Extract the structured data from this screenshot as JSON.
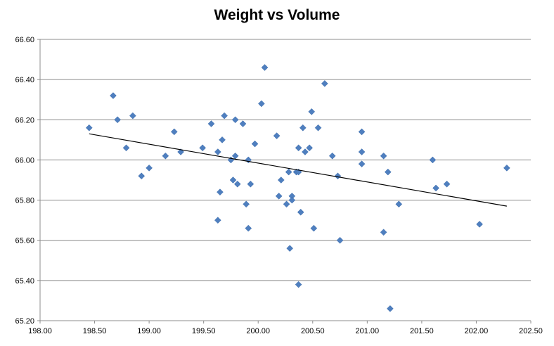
{
  "chart_data": {
    "type": "scatter",
    "title": "Weight vs Volume",
    "xlabel": "",
    "ylabel": "",
    "xlim": [
      198.0,
      202.5
    ],
    "ylim": [
      65.2,
      66.6
    ],
    "x_ticks": [
      "198.00",
      "198.50",
      "199.00",
      "199.50",
      "200.00",
      "200.50",
      "201.00",
      "201.50",
      "202.00",
      "202.50"
    ],
    "y_ticks": [
      "66.60",
      "66.40",
      "66.20",
      "66.00",
      "65.80",
      "65.60",
      "65.40",
      "65.20"
    ],
    "grid": "horizontal",
    "legend": "none",
    "marker_color": "#4f7fbf",
    "trendline_color": "#000000",
    "trendline": {
      "x": [
        198.45,
        202.28
      ],
      "y": [
        66.13,
        65.77
      ]
    },
    "points": [
      {
        "x": 198.45,
        "y": 66.16
      },
      {
        "x": 198.67,
        "y": 66.32
      },
      {
        "x": 198.71,
        "y": 66.2
      },
      {
        "x": 198.79,
        "y": 66.06
      },
      {
        "x": 198.85,
        "y": 66.22
      },
      {
        "x": 198.93,
        "y": 65.92
      },
      {
        "x": 199.0,
        "y": 65.96
      },
      {
        "x": 199.15,
        "y": 66.02
      },
      {
        "x": 199.23,
        "y": 66.14
      },
      {
        "x": 199.29,
        "y": 66.04
      },
      {
        "x": 199.49,
        "y": 66.06
      },
      {
        "x": 199.57,
        "y": 66.18
      },
      {
        "x": 199.63,
        "y": 66.04
      },
      {
        "x": 199.63,
        "y": 65.7
      },
      {
        "x": 199.65,
        "y": 65.84
      },
      {
        "x": 199.67,
        "y": 66.1
      },
      {
        "x": 199.69,
        "y": 66.22
      },
      {
        "x": 199.75,
        "y": 66.0
      },
      {
        "x": 199.77,
        "y": 65.9
      },
      {
        "x": 199.79,
        "y": 66.2
      },
      {
        "x": 199.79,
        "y": 66.02
      },
      {
        "x": 199.81,
        "y": 65.88
      },
      {
        "x": 199.86,
        "y": 66.18
      },
      {
        "x": 199.89,
        "y": 65.78
      },
      {
        "x": 199.91,
        "y": 66.0
      },
      {
        "x": 199.91,
        "y": 65.66
      },
      {
        "x": 199.93,
        "y": 65.88
      },
      {
        "x": 199.97,
        "y": 66.08
      },
      {
        "x": 200.03,
        "y": 66.28
      },
      {
        "x": 200.06,
        "y": 66.46
      },
      {
        "x": 200.17,
        "y": 66.12
      },
      {
        "x": 200.19,
        "y": 65.82
      },
      {
        "x": 200.21,
        "y": 65.9
      },
      {
        "x": 200.26,
        "y": 65.78
      },
      {
        "x": 200.28,
        "y": 65.94
      },
      {
        "x": 200.29,
        "y": 65.56
      },
      {
        "x": 200.31,
        "y": 65.82
      },
      {
        "x": 200.31,
        "y": 65.8
      },
      {
        "x": 200.35,
        "y": 65.94
      },
      {
        "x": 200.37,
        "y": 66.06
      },
      {
        "x": 200.37,
        "y": 65.94
      },
      {
        "x": 200.37,
        "y": 65.38
      },
      {
        "x": 200.39,
        "y": 65.74
      },
      {
        "x": 200.41,
        "y": 66.16
      },
      {
        "x": 200.43,
        "y": 66.04
      },
      {
        "x": 200.47,
        "y": 66.06
      },
      {
        "x": 200.49,
        "y": 66.24
      },
      {
        "x": 200.51,
        "y": 65.66
      },
      {
        "x": 200.55,
        "y": 66.16
      },
      {
        "x": 200.61,
        "y": 66.38
      },
      {
        "x": 200.68,
        "y": 66.02
      },
      {
        "x": 200.73,
        "y": 65.92
      },
      {
        "x": 200.75,
        "y": 65.6
      },
      {
        "x": 200.95,
        "y": 66.14
      },
      {
        "x": 200.95,
        "y": 66.04
      },
      {
        "x": 200.95,
        "y": 65.98
      },
      {
        "x": 201.15,
        "y": 66.02
      },
      {
        "x": 201.15,
        "y": 65.64
      },
      {
        "x": 201.19,
        "y": 65.94
      },
      {
        "x": 201.21,
        "y": 65.26
      },
      {
        "x": 201.29,
        "y": 65.78
      },
      {
        "x": 201.6,
        "y": 66.0
      },
      {
        "x": 201.63,
        "y": 65.86
      },
      {
        "x": 201.73,
        "y": 65.88
      },
      {
        "x": 202.03,
        "y": 65.68
      },
      {
        "x": 202.28,
        "y": 65.96
      }
    ]
  }
}
